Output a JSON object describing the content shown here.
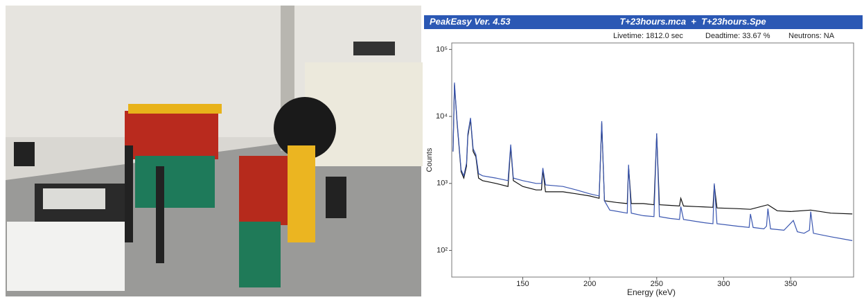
{
  "header": {
    "title": "PeakEasy Ver. 4.53",
    "files": "T+23hours.mca  +  T+23hours.Spe"
  },
  "status": {
    "livetime": "Livetime: 1812.0 sec",
    "deadtime": "Deadtime: 33.67 %",
    "neutrons": "Neutrons: NA"
  },
  "chart_data": {
    "type": "line",
    "x_label": "Energy (keV)",
    "y_label": "Counts",
    "xlim": [
      97,
      397
    ],
    "ylim": [
      40,
      125000
    ],
    "log_y": true,
    "xticks": [
      150,
      200,
      250,
      300,
      350
    ],
    "yticks": [
      {
        "value": 100,
        "label": "10²"
      },
      {
        "value": 1000,
        "label": "10³"
      },
      {
        "value": 10000,
        "label": "10⁴"
      },
      {
        "value": 100000,
        "label": "10⁵"
      }
    ],
    "series": [
      {
        "color": "#111111",
        "x": [
          98,
          99,
          101,
          104,
          106,
          108,
          109,
          111,
          113,
          115,
          117,
          120,
          130,
          139,
          141,
          143,
          150,
          160,
          164,
          165,
          167,
          180,
          190,
          200,
          207,
          209,
          211,
          220,
          228,
          229,
          231,
          240,
          248,
          250,
          252,
          260,
          267,
          268,
          270,
          280,
          292,
          293,
          295,
          310,
          320,
          333,
          340,
          350,
          365,
          380,
          396
        ],
        "values": [
          3000,
          30000,
          8000,
          1500,
          1200,
          1800,
          5000,
          9000,
          3000,
          2500,
          1200,
          1100,
          1000,
          900,
          3500,
          1100,
          900,
          800,
          800,
          1600,
          750,
          750,
          700,
          650,
          600,
          8000,
          550,
          520,
          500,
          1800,
          500,
          500,
          480,
          5500,
          480,
          470,
          460,
          600,
          460,
          450,
          440,
          950,
          430,
          420,
          410,
          480,
          390,
          380,
          400,
          360,
          350
        ]
      },
      {
        "color": "#3a56b0",
        "x": [
          98,
          99,
          101,
          104,
          106,
          108,
          109,
          111,
          113,
          115,
          117,
          120,
          130,
          139,
          141,
          143,
          150,
          160,
          164,
          165,
          167,
          180,
          190,
          200,
          207,
          209,
          211,
          215,
          228,
          229,
          231,
          240,
          248,
          250,
          252,
          260,
          267,
          268,
          270,
          285,
          292,
          293,
          295,
          310,
          319,
          320,
          322,
          330,
          332,
          333,
          335,
          345,
          352,
          355,
          360,
          364,
          365,
          367,
          380,
          396
        ],
        "values": [
          3000,
          32000,
          8500,
          1600,
          1300,
          2000,
          5500,
          9500,
          3300,
          2700,
          1400,
          1300,
          1200,
          1100,
          3800,
          1200,
          1100,
          1000,
          1000,
          1700,
          950,
          900,
          800,
          700,
          650,
          8500,
          550,
          400,
          360,
          1900,
          360,
          330,
          320,
          5600,
          320,
          300,
          290,
          450,
          290,
          260,
          250,
          1000,
          250,
          230,
          220,
          350,
          220,
          210,
          230,
          420,
          210,
          200,
          280,
          190,
          180,
          200,
          380,
          180,
          160,
          140
        ]
      }
    ]
  }
}
